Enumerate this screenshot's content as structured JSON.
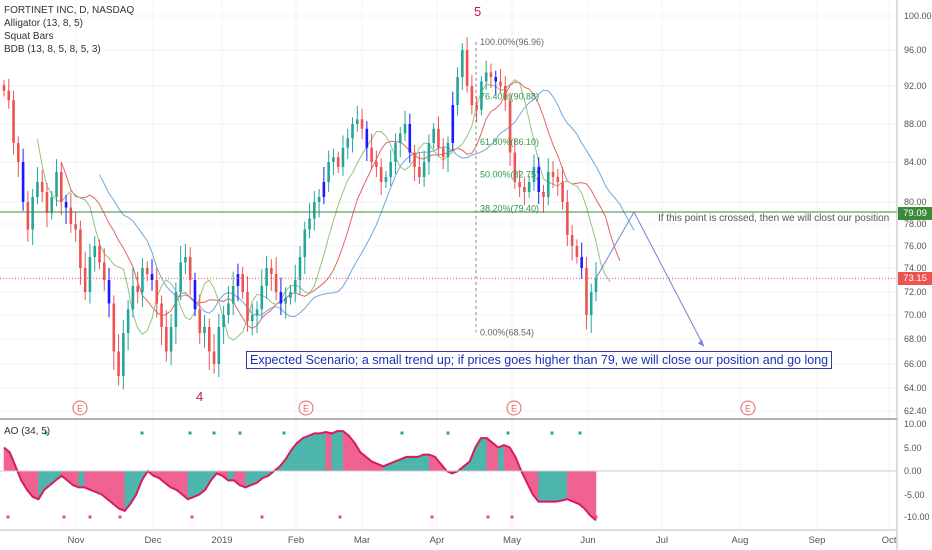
{
  "legend": {
    "symbol": "FORTINET INC, D, NASDAQ",
    "alligator": "Alligator (13, 8, 5)",
    "squat": "Squat Bars",
    "bdb": "BDB (13, 8, 5, 8, 5, 3)",
    "ao": "AO (34, 5)"
  },
  "annotations": {
    "scenario": "Expected Scenario; a small trend up; if prices goes higher than 79, we will close our position and go long",
    "note": "If this point is crossed, then we will clost our position",
    "wave4": "4",
    "wave5": "5",
    "earnings": [
      "E",
      "E",
      "E",
      "E"
    ]
  },
  "price_tags": {
    "stop": "79.09",
    "last": "73.15"
  },
  "colors": {
    "up": "#26a69a",
    "down": "#ef5350",
    "squat": "#1a1aff",
    "jaw": "#6fa8dc",
    "teeth": "#e06666",
    "lips": "#93c47d",
    "ao_up": "#4db6ac",
    "ao_down": "#f06292",
    "fib": "#888888",
    "stop_line": "#3a8a3a",
    "last_line": "#ef5350"
  },
  "chart_data": {
    "type": "candlestick",
    "symbol": "FTNT",
    "price_axis": {
      "ticks": [
        "100.00",
        "96.00",
        "92.00",
        "88.00",
        "84.00",
        "80.00",
        "78.00",
        "76.00",
        "74.00",
        "72.00",
        "70.00",
        "68.00",
        "66.00",
        "64.00",
        "62.40"
      ],
      "range": [
        62.4,
        100
      ]
    },
    "ao_axis": {
      "ticks": [
        "10.00",
        "5.00",
        "0.00",
        "-5.00",
        "-10.00"
      ],
      "range": [
        -11,
        11
      ]
    },
    "time_axis": [
      "Nov",
      "Dec",
      "2019",
      "Feb",
      "Mar",
      "Apr",
      "May",
      "Jun",
      "Jul",
      "Aug",
      "Sep",
      "Oct"
    ],
    "fib_levels": [
      {
        "label": "100.00%(96.96)",
        "price": 96.96
      },
      {
        "label": "76.40%(90.88)",
        "price": 90.88
      },
      {
        "label": "61.80%(86.10)",
        "price": 86.1
      },
      {
        "label": "50.00%(82.75)",
        "price": 82.75
      },
      {
        "label": "38.20%(79.40)",
        "price": 79.4
      },
      {
        "label": "0.00%(68.54)",
        "price": 68.54
      }
    ],
    "stop_level": 79.09,
    "last_price": 73.15,
    "closes": [
      91.5,
      90.5,
      86,
      84,
      80,
      77.5,
      80.5,
      82,
      81,
      79,
      80.5,
      83,
      80,
      79.5,
      78,
      77.5,
      74,
      72,
      75,
      76,
      74.5,
      73,
      71,
      67,
      65,
      68.5,
      70.5,
      72.5,
      72,
      74,
      73.5,
      73,
      71,
      69,
      67,
      69,
      72,
      74.5,
      75,
      73,
      70.5,
      68.5,
      69,
      67,
      66,
      69,
      70,
      71,
      72.5,
      73.5,
      72,
      69.5,
      70,
      70.5,
      72.5,
      74,
      73.5,
      72,
      71,
      71.5,
      72,
      73,
      75,
      77.5,
      78.5,
      80,
      80.5,
      82,
      84,
      84.5,
      83.5,
      85.5,
      86.5,
      88,
      88.5,
      87.5,
      85.5,
      84,
      83.5,
      82,
      82.5,
      84,
      86,
      87,
      88,
      85,
      83.5,
      82.5,
      84,
      86,
      87.5,
      85.5,
      84.5,
      86,
      90,
      93,
      96,
      92,
      90,
      89.5,
      92.5,
      93.5,
      93,
      92.5,
      92,
      90.5,
      85,
      82,
      81.5,
      81,
      82,
      83.5,
      81,
      80.5,
      83,
      82.5,
      82,
      80,
      77,
      76,
      75,
      74,
      70,
      72,
      73.15
    ],
    "ao_values": [
      5,
      4,
      1,
      -2,
      -4,
      -5.5,
      -6,
      -4,
      -3,
      -2,
      -1,
      -2,
      -3,
      -3.5,
      -3.5,
      -4,
      -4.5,
      -5,
      -6,
      -7,
      -8,
      -8.5,
      -7,
      -5,
      -2,
      0,
      -1,
      -1.5,
      -2.5,
      -3.5,
      -4,
      -5,
      -6,
      -5.5,
      -5,
      -4,
      -2,
      -0.5,
      -1,
      -2,
      -2,
      -3,
      -3.5,
      -3,
      -2.5,
      -1.5,
      -1,
      0,
      1,
      2.5,
      4.5,
      6,
      7,
      7.5,
      8,
      8,
      8.3,
      8,
      8.5,
      8.5,
      7.5,
      6,
      4,
      3,
      2,
      1.5,
      1,
      1.5,
      2,
      2.5,
      3,
      3,
      3,
      3.5,
      3.5,
      3,
      1.5,
      0,
      -0.5,
      0,
      1,
      2,
      5,
      7,
      7,
      6,
      5,
      5.5,
      5,
      3,
      0,
      -2.5,
      -5,
      -6.5,
      -6.5,
      -6.5,
      -6.5,
      -6.3,
      -6,
      -6.5,
      -7,
      -8,
      -9.5,
      -10.5
    ],
    "earnings_markers": [
      "E",
      "E",
      "E",
      "E"
    ],
    "waves": [
      "4",
      "5"
    ]
  }
}
